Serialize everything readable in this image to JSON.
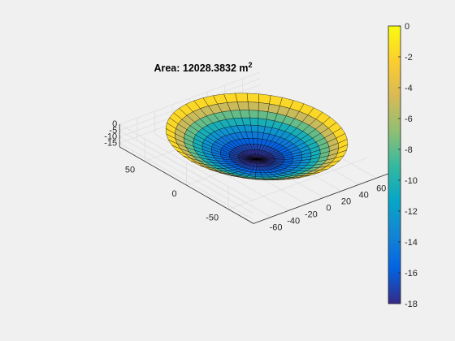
{
  "figure": {
    "background": "#f0f0f0"
  },
  "chart_data": {
    "type": "surface3d",
    "title": "Area: 12028.3832 m",
    "title_superscript": "2",
    "surface": {
      "shape": "paraboloid bowl",
      "rim_radius": 75,
      "z_rim": 0,
      "z_center": -18,
      "edge_color": "#000000"
    },
    "axes": {
      "x": {
        "ticks": [
          -60,
          -40,
          -20,
          0,
          20,
          40,
          60
        ],
        "lim": [
          -80,
          80
        ]
      },
      "y": {
        "ticks": [
          -50,
          0,
          50
        ],
        "lim": [
          -80,
          80
        ]
      },
      "z": {
        "ticks": [
          -15,
          -10,
          -5,
          0
        ],
        "lim": [
          -18,
          0
        ]
      },
      "grid": true,
      "box": "3d"
    },
    "colorbar": {
      "ticks": [
        0,
        -2,
        -4,
        -6,
        -8,
        -10,
        -12,
        -14,
        -16,
        -18
      ],
      "range": [
        -18,
        0
      ],
      "colormap": "parula",
      "position": "right"
    }
  }
}
